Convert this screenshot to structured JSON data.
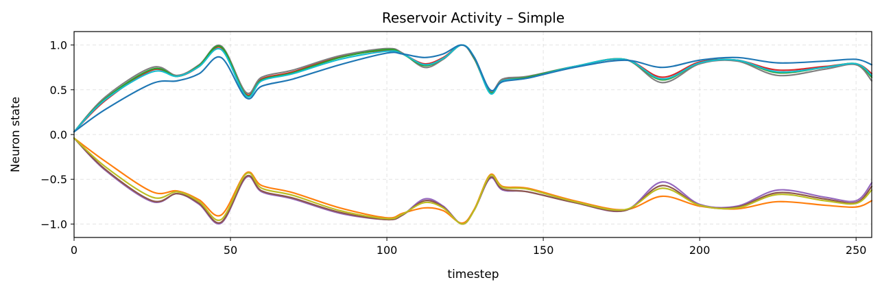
{
  "chart_data": {
    "type": "line",
    "title": "Reservoir Activity – Simple",
    "xlabel": "timestep",
    "ylabel": "Neuron state",
    "xlim": [
      0,
      255
    ],
    "ylim": [
      -1.15,
      1.15
    ],
    "xticks": [
      0,
      50,
      100,
      150,
      200,
      250
    ],
    "xtick_labels": [
      "0",
      "50",
      "100",
      "150",
      "200",
      "250"
    ],
    "yticks": [
      1.0,
      0.5,
      0.0,
      -0.5,
      -1.0
    ],
    "ytick_labels": [
      "1.0",
      "0.5",
      "0.0",
      "−0.5",
      "−1.0"
    ],
    "grid": true,
    "series": [
      {
        "color": "#d62728",
        "points": [
          [
            0,
            0.03
          ],
          [
            10,
            0.38
          ],
          [
            25,
            0.72
          ],
          [
            33,
            0.65
          ],
          [
            40,
            0.76
          ],
          [
            47,
            0.97
          ],
          [
            55,
            0.45
          ],
          [
            60,
            0.62
          ],
          [
            70,
            0.7
          ],
          [
            85,
            0.87
          ],
          [
            100,
            0.94
          ],
          [
            105,
            0.9
          ],
          [
            112,
            0.79
          ],
          [
            118,
            0.86
          ],
          [
            124,
            1.0
          ],
          [
            128,
            0.85
          ],
          [
            133,
            0.49
          ],
          [
            137,
            0.61
          ],
          [
            145,
            0.64
          ],
          [
            160,
            0.76
          ],
          [
            176,
            0.84
          ],
          [
            188,
            0.64
          ],
          [
            200,
            0.81
          ],
          [
            212,
            0.83
          ],
          [
            225,
            0.72
          ],
          [
            240,
            0.76
          ],
          [
            250,
            0.79
          ],
          [
            255,
            0.68
          ]
        ]
      },
      {
        "color": "#7f7f7f",
        "points": [
          [
            0,
            0.03
          ],
          [
            10,
            0.42
          ],
          [
            25,
            0.75
          ],
          [
            33,
            0.66
          ],
          [
            40,
            0.78
          ],
          [
            47,
            0.99
          ],
          [
            55,
            0.47
          ],
          [
            60,
            0.64
          ],
          [
            70,
            0.72
          ],
          [
            85,
            0.88
          ],
          [
            100,
            0.96
          ],
          [
            105,
            0.91
          ],
          [
            112,
            0.75
          ],
          [
            118,
            0.84
          ],
          [
            124,
            1.0
          ],
          [
            128,
            0.84
          ],
          [
            133,
            0.48
          ],
          [
            137,
            0.62
          ],
          [
            145,
            0.65
          ],
          [
            160,
            0.76
          ],
          [
            176,
            0.84
          ],
          [
            188,
            0.58
          ],
          [
            200,
            0.79
          ],
          [
            212,
            0.82
          ],
          [
            225,
            0.66
          ],
          [
            240,
            0.73
          ],
          [
            250,
            0.78
          ],
          [
            255,
            0.6
          ]
        ]
      },
      {
        "color": "#2ca02c",
        "points": [
          [
            0,
            0.03
          ],
          [
            10,
            0.4
          ],
          [
            25,
            0.73
          ],
          [
            33,
            0.65
          ],
          [
            40,
            0.77
          ],
          [
            47,
            0.98
          ],
          [
            55,
            0.44
          ],
          [
            60,
            0.61
          ],
          [
            70,
            0.69
          ],
          [
            85,
            0.86
          ],
          [
            100,
            0.95
          ],
          [
            105,
            0.9
          ],
          [
            112,
            0.77
          ],
          [
            118,
            0.85
          ],
          [
            124,
            1.0
          ],
          [
            128,
            0.85
          ],
          [
            133,
            0.47
          ],
          [
            137,
            0.6
          ],
          [
            145,
            0.64
          ],
          [
            160,
            0.76
          ],
          [
            176,
            0.84
          ],
          [
            188,
            0.61
          ],
          [
            200,
            0.8
          ],
          [
            212,
            0.83
          ],
          [
            225,
            0.69
          ],
          [
            240,
            0.75
          ],
          [
            250,
            0.79
          ],
          [
            255,
            0.64
          ]
        ]
      },
      {
        "color": "#17becf",
        "points": [
          [
            0,
            0.03
          ],
          [
            10,
            0.39
          ],
          [
            25,
            0.7
          ],
          [
            33,
            0.65
          ],
          [
            40,
            0.76
          ],
          [
            47,
            0.95
          ],
          [
            55,
            0.43
          ],
          [
            60,
            0.6
          ],
          [
            70,
            0.68
          ],
          [
            85,
            0.84
          ],
          [
            100,
            0.93
          ],
          [
            105,
            0.9
          ],
          [
            112,
            0.78
          ],
          [
            118,
            0.85
          ],
          [
            124,
            1.0
          ],
          [
            128,
            0.86
          ],
          [
            133,
            0.46
          ],
          [
            137,
            0.6
          ],
          [
            145,
            0.63
          ],
          [
            160,
            0.76
          ],
          [
            176,
            0.84
          ],
          [
            188,
            0.62
          ],
          [
            200,
            0.8
          ],
          [
            212,
            0.83
          ],
          [
            225,
            0.7
          ],
          [
            240,
            0.75
          ],
          [
            250,
            0.79
          ],
          [
            255,
            0.66
          ]
        ]
      },
      {
        "color": "#1f77b4",
        "points": [
          [
            0,
            0.03
          ],
          [
            10,
            0.28
          ],
          [
            25,
            0.57
          ],
          [
            33,
            0.6
          ],
          [
            40,
            0.68
          ],
          [
            47,
            0.86
          ],
          [
            55,
            0.41
          ],
          [
            60,
            0.54
          ],
          [
            70,
            0.62
          ],
          [
            85,
            0.78
          ],
          [
            100,
            0.91
          ],
          [
            105,
            0.9
          ],
          [
            112,
            0.86
          ],
          [
            118,
            0.9
          ],
          [
            124,
            1.0
          ],
          [
            128,
            0.86
          ],
          [
            133,
            0.5
          ],
          [
            137,
            0.59
          ],
          [
            145,
            0.63
          ],
          [
            160,
            0.75
          ],
          [
            176,
            0.83
          ],
          [
            188,
            0.75
          ],
          [
            200,
            0.83
          ],
          [
            212,
            0.86
          ],
          [
            225,
            0.8
          ],
          [
            240,
            0.82
          ],
          [
            250,
            0.84
          ],
          [
            255,
            0.78
          ]
        ]
      },
      {
        "color": "#9467bd",
        "points": [
          [
            0,
            -0.04
          ],
          [
            10,
            -0.4
          ],
          [
            25,
            -0.75
          ],
          [
            33,
            -0.66
          ],
          [
            40,
            -0.78
          ],
          [
            47,
            -0.99
          ],
          [
            55,
            -0.48
          ],
          [
            60,
            -0.64
          ],
          [
            70,
            -0.72
          ],
          [
            85,
            -0.88
          ],
          [
            100,
            -0.95
          ],
          [
            105,
            -0.9
          ],
          [
            112,
            -0.72
          ],
          [
            118,
            -0.8
          ],
          [
            124,
            -1.0
          ],
          [
            128,
            -0.84
          ],
          [
            133,
            -0.49
          ],
          [
            137,
            -0.62
          ],
          [
            145,
            -0.64
          ],
          [
            160,
            -0.76
          ],
          [
            176,
            -0.85
          ],
          [
            188,
            -0.53
          ],
          [
            200,
            -0.78
          ],
          [
            212,
            -0.8
          ],
          [
            225,
            -0.62
          ],
          [
            240,
            -0.7
          ],
          [
            250,
            -0.74
          ],
          [
            255,
            -0.54
          ]
        ]
      },
      {
        "color": "#ff7f0e",
        "points": [
          [
            0,
            -0.04
          ],
          [
            10,
            -0.3
          ],
          [
            25,
            -0.64
          ],
          [
            33,
            -0.63
          ],
          [
            40,
            -0.73
          ],
          [
            47,
            -0.9
          ],
          [
            55,
            -0.43
          ],
          [
            60,
            -0.57
          ],
          [
            70,
            -0.65
          ],
          [
            85,
            -0.82
          ],
          [
            100,
            -0.93
          ],
          [
            105,
            -0.88
          ],
          [
            112,
            -0.82
          ],
          [
            118,
            -0.85
          ],
          [
            124,
            -0.99
          ],
          [
            128,
            -0.83
          ],
          [
            133,
            -0.45
          ],
          [
            137,
            -0.58
          ],
          [
            145,
            -0.6
          ],
          [
            160,
            -0.74
          ],
          [
            176,
            -0.84
          ],
          [
            188,
            -0.69
          ],
          [
            200,
            -0.8
          ],
          [
            212,
            -0.83
          ],
          [
            225,
            -0.75
          ],
          [
            240,
            -0.79
          ],
          [
            250,
            -0.81
          ],
          [
            255,
            -0.74
          ]
        ]
      },
      {
        "color": "#8c564b",
        "points": [
          [
            0,
            -0.04
          ],
          [
            10,
            -0.39
          ],
          [
            25,
            -0.74
          ],
          [
            33,
            -0.66
          ],
          [
            40,
            -0.77
          ],
          [
            47,
            -0.98
          ],
          [
            55,
            -0.47
          ],
          [
            60,
            -0.63
          ],
          [
            70,
            -0.71
          ],
          [
            85,
            -0.87
          ],
          [
            100,
            -0.95
          ],
          [
            105,
            -0.9
          ],
          [
            112,
            -0.74
          ],
          [
            118,
            -0.81
          ],
          [
            124,
            -1.0
          ],
          [
            128,
            -0.84
          ],
          [
            133,
            -0.48
          ],
          [
            137,
            -0.61
          ],
          [
            145,
            -0.64
          ],
          [
            160,
            -0.76
          ],
          [
            176,
            -0.85
          ],
          [
            188,
            -0.57
          ],
          [
            200,
            -0.79
          ],
          [
            212,
            -0.81
          ],
          [
            225,
            -0.65
          ],
          [
            240,
            -0.72
          ],
          [
            250,
            -0.76
          ],
          [
            255,
            -0.58
          ]
        ]
      },
      {
        "color": "#bcbd22",
        "points": [
          [
            0,
            -0.04
          ],
          [
            10,
            -0.36
          ],
          [
            25,
            -0.7
          ],
          [
            33,
            -0.64
          ],
          [
            40,
            -0.75
          ],
          [
            47,
            -0.95
          ],
          [
            55,
            -0.44
          ],
          [
            60,
            -0.6
          ],
          [
            70,
            -0.68
          ],
          [
            85,
            -0.85
          ],
          [
            100,
            -0.94
          ],
          [
            105,
            -0.89
          ],
          [
            112,
            -0.76
          ],
          [
            118,
            -0.82
          ],
          [
            124,
            -1.0
          ],
          [
            128,
            -0.84
          ],
          [
            133,
            -0.46
          ],
          [
            137,
            -0.59
          ],
          [
            145,
            -0.61
          ],
          [
            160,
            -0.75
          ],
          [
            176,
            -0.84
          ],
          [
            188,
            -0.6
          ],
          [
            200,
            -0.79
          ],
          [
            212,
            -0.82
          ],
          [
            225,
            -0.67
          ],
          [
            240,
            -0.74
          ],
          [
            250,
            -0.77
          ],
          [
            255,
            -0.62
          ]
        ]
      }
    ]
  }
}
